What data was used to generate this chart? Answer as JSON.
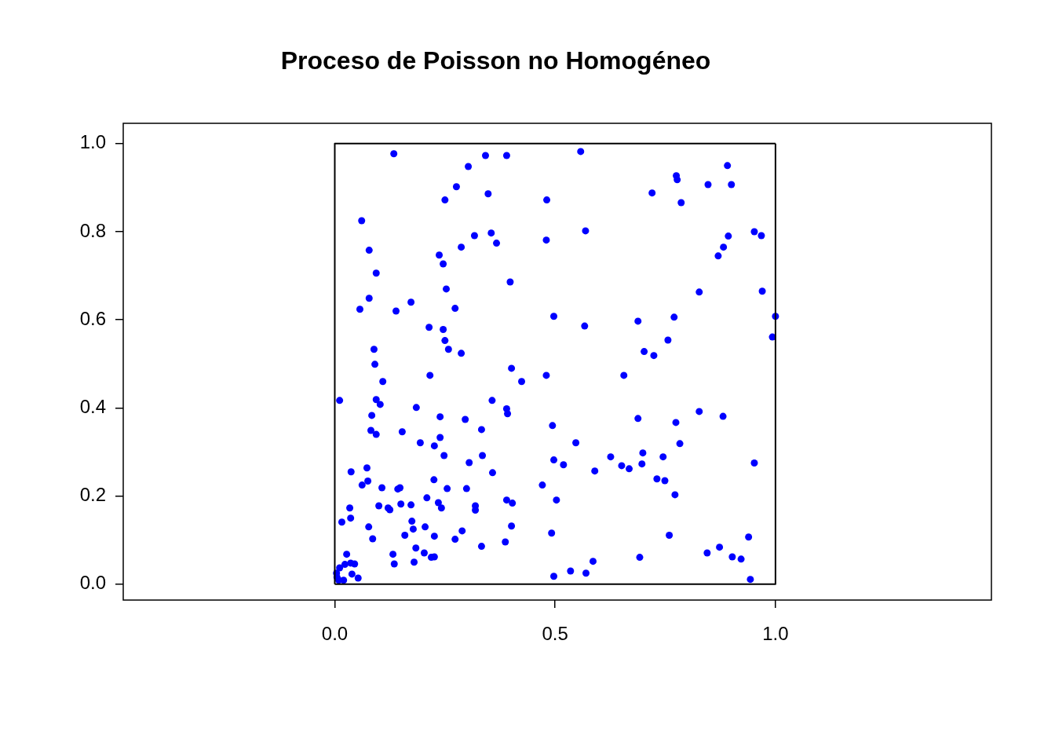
{
  "chart_data": {
    "type": "scatter",
    "title": "Proceso de Poisson no Homogéneo",
    "xlim": [
      -0.48,
      1.49
    ],
    "ylim": [
      -0.036,
      1.046
    ],
    "xticks": [
      {
        "value": 0,
        "label": "0.0"
      },
      {
        "value": 0.5,
        "label": "0.5"
      },
      {
        "value": 1,
        "label": "1.0"
      }
    ],
    "yticks": [
      {
        "value": 0,
        "label": "0.0"
      },
      {
        "value": 0.2,
        "label": "0.2"
      },
      {
        "value": 0.4,
        "label": "0.4"
      },
      {
        "value": 0.6,
        "label": "0.6"
      },
      {
        "value": 0.8,
        "label": "0.8"
      },
      {
        "value": 1,
        "label": "1.0"
      }
    ],
    "marker": "circle",
    "series": [
      {
        "type": "line",
        "marker": "none",
        "color": "#000000",
        "x": [
          0,
          1,
          1
        ],
        "values": [
          0,
          0,
          1
        ]
      },
      {
        "type": "line",
        "marker": "none",
        "color": "#000000",
        "x": [
          0,
          0,
          1
        ],
        "values": [
          0,
          1,
          1
        ]
      },
      {
        "color": "#0000ff",
        "x": [
          0.134,
          0.342,
          0.39,
          0.303,
          0.558,
          0.276,
          0.348,
          0.25,
          0.481,
          0.775,
          0.777,
          0.847,
          0.891,
          0.9,
          0.72,
          0.786,
          0.061,
          0.317,
          0.355,
          0.367,
          0.48,
          0.287,
          0.078,
          0.237,
          0.246,
          0.094,
          0.569,
          0.952,
          0.968,
          0.893,
          0.882,
          0.87,
          0.253,
          0.398,
          0.078,
          0.057,
          0.139,
          0.173,
          0.273,
          0.827,
          0.97,
          0.497,
          0.77,
          0.688,
          1.0,
          0.567,
          0.756,
          0.993,
          0.702,
          0.724,
          0.214,
          0.246,
          0.25,
          0.258,
          0.287,
          0.089,
          0.091,
          0.216,
          0.109,
          0.401,
          0.424,
          0.48,
          0.656,
          0.011,
          0.094,
          0.103,
          0.185,
          0.357,
          0.39,
          0.392,
          0.239,
          0.296,
          0.084,
          0.333,
          0.494,
          0.082,
          0.094,
          0.153,
          0.239,
          0.194,
          0.226,
          0.248,
          0.335,
          0.305,
          0.497,
          0.358,
          0.827,
          0.881,
          0.688,
          0.774,
          0.547,
          0.783,
          0.699,
          0.745,
          0.626,
          0.519,
          0.697,
          0.952,
          0.651,
          0.668,
          0.59,
          0.731,
          0.749,
          0.772,
          0.073,
          0.037,
          0.075,
          0.062,
          0.107,
          0.143,
          0.148,
          0.225,
          0.255,
          0.299,
          0.471,
          0.209,
          0.235,
          0.242,
          0.319,
          0.319,
          0.39,
          0.403,
          0.503,
          0.034,
          0.1,
          0.121,
          0.125,
          0.15,
          0.173,
          0.016,
          0.036,
          0.077,
          0.086,
          0.175,
          0.178,
          0.205,
          0.159,
          0.226,
          0.289,
          0.273,
          0.401,
          0.387,
          0.492,
          0.333,
          0.184,
          0.203,
          0.219,
          0.226,
          0.132,
          0.135,
          0.18,
          0.497,
          0.027,
          0.039,
          0.053,
          0.045,
          0.036,
          0.023,
          0.011,
          0.004,
          0.009,
          0.02,
          0.005,
          0.759,
          0.939,
          0.873,
          0.845,
          0.902,
          0.922,
          0.692,
          0.586,
          0.535,
          0.57,
          0.943
        ],
        "values": [
          0.977,
          0.973,
          0.973,
          0.948,
          0.982,
          0.902,
          0.886,
          0.872,
          0.872,
          0.927,
          0.918,
          0.907,
          0.95,
          0.907,
          0.888,
          0.866,
          0.825,
          0.791,
          0.797,
          0.774,
          0.781,
          0.765,
          0.758,
          0.747,
          0.727,
          0.706,
          0.802,
          0.8,
          0.791,
          0.79,
          0.765,
          0.745,
          0.67,
          0.686,
          0.649,
          0.624,
          0.62,
          0.64,
          0.626,
          0.663,
          0.665,
          0.608,
          0.606,
          0.597,
          0.608,
          0.586,
          0.554,
          0.561,
          0.528,
          0.519,
          0.583,
          0.578,
          0.553,
          0.533,
          0.524,
          0.533,
          0.499,
          0.474,
          0.46,
          0.49,
          0.46,
          0.474,
          0.474,
          0.417,
          0.419,
          0.408,
          0.401,
          0.417,
          0.398,
          0.387,
          0.38,
          0.374,
          0.383,
          0.351,
          0.36,
          0.349,
          0.34,
          0.346,
          0.333,
          0.321,
          0.314,
          0.292,
          0.292,
          0.276,
          0.282,
          0.253,
          0.392,
          0.381,
          0.376,
          0.367,
          0.321,
          0.319,
          0.298,
          0.289,
          0.289,
          0.271,
          0.273,
          0.275,
          0.269,
          0.262,
          0.257,
          0.239,
          0.235,
          0.203,
          0.264,
          0.255,
          0.234,
          0.225,
          0.219,
          0.216,
          0.219,
          0.237,
          0.217,
          0.217,
          0.225,
          0.196,
          0.185,
          0.173,
          0.178,
          0.168,
          0.191,
          0.184,
          0.191,
          0.173,
          0.178,
          0.173,
          0.169,
          0.182,
          0.18,
          0.141,
          0.15,
          0.13,
          0.103,
          0.143,
          0.125,
          0.13,
          0.111,
          0.109,
          0.121,
          0.102,
          0.132,
          0.096,
          0.116,
          0.086,
          0.082,
          0.071,
          0.061,
          0.062,
          0.068,
          0.046,
          0.05,
          0.018,
          0.068,
          0.023,
          0.014,
          0.046,
          0.048,
          0.045,
          0.037,
          0.025,
          0.009,
          0.009,
          0.016,
          0.111,
          0.107,
          0.084,
          0.071,
          0.062,
          0.057,
          0.061,
          0.052,
          0.03,
          0.025,
          0.011
        ]
      }
    ]
  }
}
